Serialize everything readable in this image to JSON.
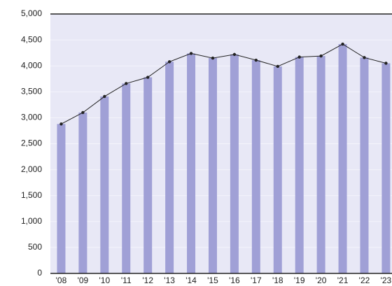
{
  "chart_data": {
    "type": "bar_line",
    "categories": [
      "'08",
      "'09",
      "'10",
      "'11",
      "'12",
      "'13",
      "'14",
      "'15",
      "'16",
      "'17",
      "'18",
      "'19",
      "'20",
      "'21",
      "'22",
      "'23"
    ],
    "values": [
      2880,
      3100,
      3410,
      3660,
      3780,
      4080,
      4240,
      4150,
      4220,
      4110,
      3990,
      4170,
      4190,
      4420,
      4160,
      4050
    ],
    "bar_color": "#a0a0d6",
    "line_color": "#222222",
    "background": "#e8e8f6",
    "ylim": [
      0,
      5000
    ],
    "yticks": [
      0,
      500,
      {
        "value": 1000,
        "label": "1,000"
      },
      {
        "value": 1500,
        "label": "1,500"
      },
      {
        "value": 2000,
        "label": "2,000"
      },
      {
        "value": 2500,
        "label": "2,500"
      },
      {
        "value": 3000,
        "label": "3,000"
      },
      {
        "value": 3500,
        "label": "3,500"
      },
      {
        "value": 4000,
        "label": "4,000"
      },
      {
        "value": 4500,
        "label": "4,500"
      },
      {
        "value": 5000,
        "label": "5,000"
      }
    ],
    "grid": true
  }
}
